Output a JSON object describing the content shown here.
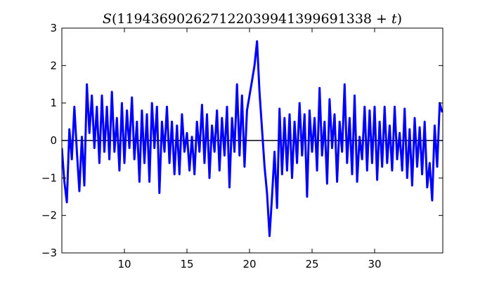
{
  "chart_data": {
    "type": "line",
    "title": "S(119436902627122039941399691338 + t)",
    "title_parts": {
      "func": "S",
      "open": "(",
      "number": "119436902627122039941399691338",
      "plus": " + ",
      "var": "t",
      "close": ")"
    },
    "xlabel": "",
    "ylabel": "",
    "xlim": [
      5.0,
      35.45
    ],
    "ylim": [
      -3,
      3
    ],
    "xticks": [
      10,
      15,
      20,
      25,
      30
    ],
    "yticks": [
      -3,
      -2,
      -1,
      0,
      1,
      2,
      3
    ],
    "grid": false,
    "zero_line": true,
    "line_color": "#0000ff",
    "series": [
      {
        "points": [
          [
            5.0,
            -0.2
          ],
          [
            5.2,
            -1.1
          ],
          [
            5.4,
            -1.65
          ],
          [
            5.6,
            0.3
          ],
          [
            5.8,
            -0.5
          ],
          [
            6.0,
            0.9
          ],
          [
            6.2,
            -0.3
          ],
          [
            6.4,
            -1.35
          ],
          [
            6.6,
            0.1
          ],
          [
            6.8,
            -1.2
          ],
          [
            7.0,
            1.5
          ],
          [
            7.2,
            0.2
          ],
          [
            7.4,
            1.2
          ],
          [
            7.6,
            -0.2
          ],
          [
            7.8,
            0.9
          ],
          [
            8.0,
            -0.6
          ],
          [
            8.2,
            1.2
          ],
          [
            8.4,
            -0.3
          ],
          [
            8.6,
            0.9
          ],
          [
            8.8,
            -0.5
          ],
          [
            9.0,
            1.3
          ],
          [
            9.2,
            -0.3
          ],
          [
            9.4,
            0.6
          ],
          [
            9.6,
            -0.8
          ],
          [
            9.8,
            1.0
          ],
          [
            10.0,
            -0.6
          ],
          [
            10.2,
            0.8
          ],
          [
            10.4,
            -0.2
          ],
          [
            10.6,
            1.15
          ],
          [
            10.8,
            -0.5
          ],
          [
            11.0,
            0.5
          ],
          [
            11.2,
            -1.1
          ],
          [
            11.4,
            0.8
          ],
          [
            11.6,
            -0.6
          ],
          [
            11.8,
            0.7
          ],
          [
            12.0,
            -1.1
          ],
          [
            12.2,
            1.0
          ],
          [
            12.4,
            -0.2
          ],
          [
            12.6,
            0.9
          ],
          [
            12.8,
            -1.4
          ],
          [
            13.0,
            0.5
          ],
          [
            13.2,
            -0.3
          ],
          [
            13.4,
            0.9
          ],
          [
            13.6,
            -0.6
          ],
          [
            13.8,
            0.5
          ],
          [
            14.0,
            -0.9
          ],
          [
            14.2,
            0.4
          ],
          [
            14.4,
            -0.9
          ],
          [
            14.6,
            0.7
          ],
          [
            14.8,
            -0.3
          ],
          [
            15.0,
            0.2
          ],
          [
            15.2,
            -0.8
          ],
          [
            15.4,
            0.1
          ],
          [
            15.6,
            -0.9
          ],
          [
            15.8,
            0.5
          ],
          [
            16.0,
            -0.3
          ],
          [
            16.2,
            0.95
          ],
          [
            16.4,
            -0.6
          ],
          [
            16.6,
            0.7
          ],
          [
            16.8,
            -1.0
          ],
          [
            17.0,
            0.4
          ],
          [
            17.2,
            -0.3
          ],
          [
            17.4,
            0.8
          ],
          [
            17.6,
            -0.8
          ],
          [
            17.8,
            0.6
          ],
          [
            18.0,
            -0.4
          ],
          [
            18.2,
            0.9
          ],
          [
            18.4,
            -1.25
          ],
          [
            18.6,
            0.6
          ],
          [
            18.8,
            -0.3
          ],
          [
            19.0,
            1.5
          ],
          [
            19.2,
            -0.4
          ],
          [
            19.4,
            1.2
          ],
          [
            19.6,
            -0.7
          ],
          [
            19.8,
            0.8
          ],
          [
            20.0,
            1.2
          ],
          [
            20.2,
            1.6
          ],
          [
            20.4,
            2.0
          ],
          [
            20.6,
            2.65
          ],
          [
            20.8,
            1.3
          ],
          [
            21.0,
            0.3
          ],
          [
            21.2,
            -0.7
          ],
          [
            21.4,
            -1.4
          ],
          [
            21.6,
            -2.55
          ],
          [
            21.8,
            -1.5
          ],
          [
            22.0,
            -0.3
          ],
          [
            22.2,
            -1.8
          ],
          [
            22.4,
            0.85
          ],
          [
            22.6,
            -0.9
          ],
          [
            22.8,
            0.6
          ],
          [
            23.0,
            -0.8
          ],
          [
            23.2,
            0.7
          ],
          [
            23.4,
            -1.0
          ],
          [
            23.6,
            0.5
          ],
          [
            23.8,
            -0.6
          ],
          [
            24.0,
            1.0
          ],
          [
            24.2,
            -0.4
          ],
          [
            24.4,
            0.7
          ],
          [
            24.6,
            -1.5
          ],
          [
            24.8,
            0.8
          ],
          [
            25.0,
            -0.3
          ],
          [
            25.2,
            0.6
          ],
          [
            25.4,
            -0.8
          ],
          [
            25.6,
            1.4
          ],
          [
            25.8,
            -0.4
          ],
          [
            26.0,
            0.5
          ],
          [
            26.2,
            -1.15
          ],
          [
            26.4,
            1.1
          ],
          [
            26.6,
            -0.2
          ],
          [
            26.8,
            0.7
          ],
          [
            27.0,
            -1.1
          ],
          [
            27.2,
            0.5
          ],
          [
            27.4,
            -0.3
          ],
          [
            27.6,
            1.5
          ],
          [
            27.8,
            -0.6
          ],
          [
            28.0,
            0.6
          ],
          [
            28.2,
            -0.9
          ],
          [
            28.4,
            1.2
          ],
          [
            28.6,
            -1.1
          ],
          [
            28.8,
            0.1
          ],
          [
            29.0,
            -0.5
          ],
          [
            29.2,
            0.9
          ],
          [
            29.4,
            -0.8
          ],
          [
            29.6,
            0.8
          ],
          [
            29.8,
            -0.6
          ],
          [
            30.0,
            0.9
          ],
          [
            30.2,
            -1.05
          ],
          [
            30.4,
            0.5
          ],
          [
            30.6,
            -0.7
          ],
          [
            30.8,
            0.9
          ],
          [
            31.0,
            -0.6
          ],
          [
            31.2,
            0.4
          ],
          [
            31.4,
            -0.8
          ],
          [
            31.6,
            0.9
          ],
          [
            31.8,
            -0.5
          ],
          [
            32.0,
            0.2
          ],
          [
            32.2,
            -0.8
          ],
          [
            32.4,
            0.85
          ],
          [
            32.6,
            -1.0
          ],
          [
            32.8,
            0.3
          ],
          [
            33.0,
            -1.2
          ],
          [
            33.2,
            0.6
          ],
          [
            33.4,
            -0.7
          ],
          [
            33.6,
            0.35
          ],
          [
            33.8,
            -0.9
          ],
          [
            34.0,
            0.5
          ],
          [
            34.2,
            -1.25
          ],
          [
            34.4,
            -0.6
          ],
          [
            34.6,
            -1.6
          ],
          [
            34.8,
            0.4
          ],
          [
            35.0,
            -0.7
          ],
          [
            35.2,
            1.0
          ],
          [
            35.4,
            0.75
          ]
        ]
      }
    ]
  }
}
